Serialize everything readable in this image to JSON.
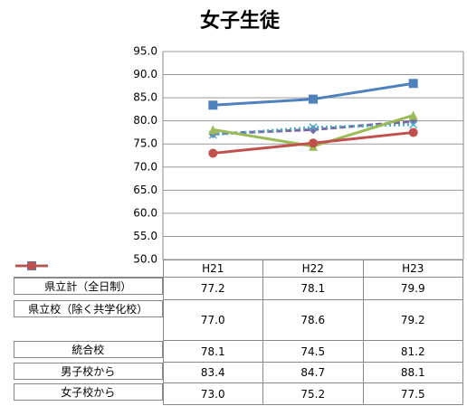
{
  "chart_data": {
    "type": "line",
    "title": "女子生徒",
    "categories": [
      "H21",
      "H22",
      "H23"
    ],
    "ylim": [
      50,
      95
    ],
    "yticks": [
      {
        "value": 50,
        "label": "50.0"
      },
      {
        "value": 55,
        "label": "55.0"
      },
      {
        "value": 60,
        "label": "60.0"
      },
      {
        "value": 65,
        "label": "65.0"
      },
      {
        "value": 70,
        "label": "70.0"
      },
      {
        "value": 75,
        "label": "75.0"
      },
      {
        "value": 80,
        "label": "80.0"
      },
      {
        "value": 85,
        "label": "85.0"
      },
      {
        "value": 90,
        "label": "90.0"
      },
      {
        "value": 95,
        "label": "95.0"
      }
    ],
    "grid": true,
    "series": [
      {
        "name": "県立計（全日制）",
        "color": "#8064a2",
        "marker": "diamond",
        "dash": "dashed",
        "values": [
          77.2,
          78.1,
          79.9
        ],
        "value_labels": [
          "77.2",
          "78.1",
          "79.9"
        ]
      },
      {
        "name": "県立校（除く共学化校）",
        "color": "#4bacc6",
        "marker": "x",
        "dash": "dotted",
        "values": [
          77.0,
          78.6,
          79.2
        ],
        "value_labels": [
          "77.0",
          "78.6",
          "79.2"
        ]
      },
      {
        "name": "統合校",
        "color": "#9bbb59",
        "marker": "triangle",
        "dash": "solid",
        "values": [
          78.1,
          74.5,
          81.2
        ],
        "value_labels": [
          "78.1",
          "74.5",
          "81.2"
        ]
      },
      {
        "name": "男子校から",
        "color": "#4f81bd",
        "marker": "square",
        "dash": "solid",
        "values": [
          83.4,
          84.7,
          88.1
        ],
        "value_labels": [
          "83.4",
          "84.7",
          "88.1"
        ]
      },
      {
        "name": "女子校から",
        "color": "#c0504d",
        "marker": "circle",
        "dash": "solid",
        "values": [
          73.0,
          75.2,
          77.5
        ],
        "value_labels": [
          "73.0",
          "75.2",
          "77.5"
        ]
      }
    ]
  }
}
